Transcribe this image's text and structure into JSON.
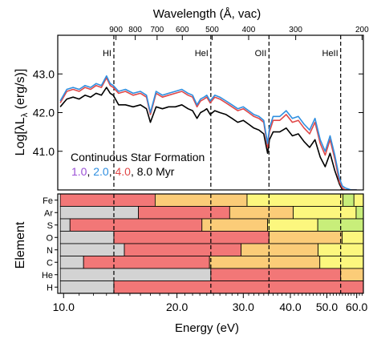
{
  "chart_data": [
    {
      "type": "line",
      "title": "Continuous Star Formation",
      "top_axis_label": "Wavelength (Å, vac)",
      "top_ticks": [
        "900",
        "800",
        "700",
        "600",
        "500",
        "400",
        "300",
        "200"
      ],
      "ylabel": "Log[λL",
      "ylabel_sub": "λ",
      "ylabel_end": " (erg/s)]",
      "ylim": [
        40.0,
        44.0
      ],
      "yticks": [
        "43.0",
        "42.0",
        "41.0"
      ],
      "xlim_log_energy_eV": [
        9.65,
        62.5
      ],
      "ionization_edges": [
        {
          "label": "HI",
          "energy": 13.6
        },
        {
          "label": "HeI",
          "energy": 24.6
        },
        {
          "label": "OII",
          "energy": 35.1
        },
        {
          "label": "HeII",
          "energy": 54.4
        }
      ],
      "legend_prefix": "",
      "legend_sep": ", ",
      "legend_unit": " Myr",
      "series": [
        {
          "name": "1.0",
          "color": "#9b4fd6",
          "x": [],
          "y": []
        },
        {
          "name": "2.0",
          "color": "#2f8fe0",
          "x": [
            9.8,
            10.2,
            10.6,
            11.0,
            11.4,
            11.8,
            12.2,
            12.6,
            13.0,
            13.3,
            13.55,
            14.0,
            14.6,
            15.3,
            16.0,
            16.6,
            17.0,
            17.6,
            18.3,
            19.0,
            19.8,
            20.6,
            21.4,
            22.0,
            22.6,
            23.1,
            23.6,
            24.0,
            24.5,
            25.2,
            26.0,
            27.0,
            28.0,
            29.0,
            30.0,
            31.0,
            32.0,
            33.0,
            34.0,
            34.8,
            35.2,
            36.0,
            37.5,
            39.0,
            40.5,
            42.0,
            43.5,
            45.0,
            46.5,
            48.0,
            49.5,
            51.0,
            52.5,
            54.0,
            55.0,
            56.0,
            58.0,
            60.0
          ],
          "y": [
            42.3,
            42.6,
            42.65,
            42.6,
            42.7,
            42.65,
            42.75,
            42.7,
            42.95,
            42.75,
            42.7,
            42.55,
            42.6,
            42.5,
            42.55,
            42.45,
            42.0,
            42.55,
            42.45,
            42.5,
            42.55,
            42.6,
            42.5,
            42.45,
            42.2,
            42.35,
            42.4,
            42.45,
            42.3,
            42.45,
            42.4,
            42.3,
            42.2,
            42.1,
            42.15,
            42.05,
            41.95,
            41.9,
            41.8,
            41.2,
            41.6,
            41.9,
            41.9,
            42.05,
            41.85,
            41.9,
            41.7,
            41.55,
            41.85,
            41.3,
            41.0,
            41.4,
            40.9,
            40.3,
            40.1,
            40.05,
            40.0,
            40.0
          ]
        },
        {
          "name": "4.0",
          "color": "#e04848",
          "x": [
            9.8,
            10.2,
            10.6,
            11.0,
            11.4,
            11.8,
            12.2,
            12.6,
            13.0,
            13.3,
            13.55,
            14.0,
            14.6,
            15.3,
            16.0,
            16.6,
            17.0,
            17.6,
            18.3,
            19.0,
            19.8,
            20.6,
            21.4,
            22.0,
            22.6,
            23.1,
            23.6,
            24.0,
            24.5,
            25.2,
            26.0,
            27.0,
            28.0,
            29.0,
            30.0,
            31.0,
            32.0,
            33.0,
            34.0,
            34.8,
            35.2,
            36.0,
            37.5,
            39.0,
            40.5,
            42.0,
            43.5,
            45.0,
            46.5,
            48.0,
            49.5,
            51.0,
            52.5,
            54.0,
            55.0,
            56.0,
            58.0,
            60.0
          ],
          "y": [
            42.25,
            42.55,
            42.6,
            42.55,
            42.65,
            42.6,
            42.7,
            42.65,
            42.9,
            42.7,
            42.65,
            42.5,
            42.55,
            42.45,
            42.5,
            42.4,
            41.95,
            42.5,
            42.4,
            42.45,
            42.5,
            42.55,
            42.45,
            42.4,
            42.15,
            42.3,
            42.35,
            42.4,
            42.25,
            42.4,
            42.35,
            42.25,
            42.15,
            42.05,
            42.1,
            42.0,
            41.9,
            41.85,
            41.75,
            41.1,
            41.5,
            41.8,
            41.8,
            41.95,
            41.75,
            41.8,
            41.6,
            41.45,
            41.75,
            41.2,
            40.9,
            41.3,
            40.8,
            40.2,
            40.05,
            40.0,
            40.0,
            40.0
          ]
        },
        {
          "name": "8.0",
          "color": "#000000",
          "x": [
            9.8,
            10.2,
            10.6,
            11.0,
            11.4,
            11.8,
            12.2,
            12.6,
            13.0,
            13.3,
            13.55,
            14.0,
            14.6,
            15.3,
            16.0,
            16.6,
            17.0,
            17.6,
            18.3,
            19.0,
            19.8,
            20.6,
            21.4,
            22.0,
            22.6,
            23.1,
            23.6,
            24.0,
            24.5,
            25.2,
            26.0,
            27.0,
            28.0,
            29.0,
            30.0,
            31.0,
            32.0,
            33.0,
            34.0,
            34.8,
            35.2,
            36.0,
            37.5,
            39.0,
            40.5,
            42.0,
            43.5,
            45.0,
            46.5,
            48.0,
            49.5,
            51.0,
            52.5,
            54.0,
            55.0,
            56.0,
            58.0,
            60.0
          ],
          "y": [
            42.15,
            42.35,
            42.4,
            42.35,
            42.45,
            42.4,
            42.5,
            42.45,
            42.65,
            42.5,
            42.45,
            42.2,
            42.2,
            42.15,
            42.2,
            42.1,
            41.75,
            42.15,
            42.1,
            42.15,
            42.15,
            42.2,
            42.1,
            42.05,
            41.85,
            42.0,
            42.05,
            42.1,
            41.95,
            42.05,
            42.0,
            41.95,
            41.85,
            41.75,
            41.8,
            41.7,
            41.6,
            41.55,
            41.45,
            40.95,
            41.3,
            41.5,
            41.5,
            41.6,
            41.4,
            41.45,
            41.25,
            41.1,
            41.3,
            40.85,
            40.6,
            40.95,
            40.5,
            40.15,
            40.0,
            40.0,
            40.0,
            40.0
          ]
        }
      ]
    },
    {
      "type": "heatmap",
      "ylabel": "Element",
      "xlabel": "Energy (eV)",
      "xticks": [
        {
          "label": "10.0",
          "value": 10
        },
        {
          "label": "20.0",
          "value": 20
        },
        {
          "label": "30.0",
          "value": 30
        },
        {
          "label": "40.0",
          "value": 40
        },
        {
          "label": "50.0",
          "value": 50
        },
        {
          "label": "60.0",
          "value": 60
        }
      ],
      "stage_colors": [
        "#d3d3d3",
        "#f27777",
        "#fbcc78",
        "#fcf77e",
        "#c8ee7a"
      ],
      "elements": [
        {
          "name": "Fe",
          "edges": [
            9.8,
            17.5,
            30.7,
            55.2,
            59.0,
            62.5
          ],
          "stages": [
            1,
            2,
            3,
            4,
            3
          ]
        },
        {
          "name": "Ar",
          "edges": [
            9.8,
            15.8,
            27.6,
            40.7,
            59.8,
            62.5
          ],
          "stages": [
            0,
            1,
            2,
            3,
            4
          ]
        },
        {
          "name": "S",
          "edges": [
            9.8,
            10.4,
            23.3,
            34.8,
            47.3,
            62.5
          ],
          "stages": [
            0,
            1,
            2,
            3,
            4
          ]
        },
        {
          "name": "O",
          "edges": [
            9.8,
            13.6,
            35.1,
            54.9,
            62.5
          ],
          "stages": [
            0,
            1,
            2,
            3
          ]
        },
        {
          "name": "N",
          "edges": [
            9.8,
            14.5,
            29.6,
            47.4,
            62.5
          ],
          "stages": [
            0,
            1,
            2,
            3
          ]
        },
        {
          "name": "C",
          "edges": [
            9.8,
            11.3,
            24.4,
            47.9,
            62.5
          ],
          "stages": [
            0,
            1,
            2,
            3
          ]
        },
        {
          "name": "He",
          "edges": [
            9.8,
            24.6,
            54.4,
            62.5
          ],
          "stages": [
            0,
            1,
            2
          ]
        },
        {
          "name": "H",
          "edges": [
            9.8,
            13.6,
            62.5
          ],
          "stages": [
            0,
            1
          ]
        }
      ]
    }
  ]
}
